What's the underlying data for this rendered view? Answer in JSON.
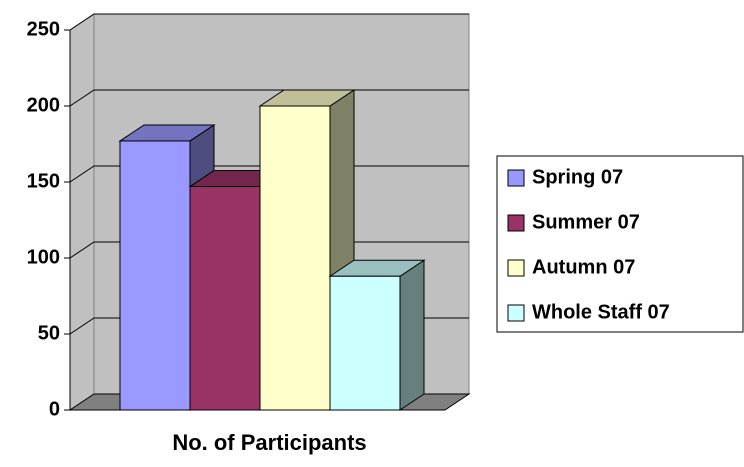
{
  "chart_data": {
    "type": "bar",
    "categories": [
      "No. of Participants"
    ],
    "series": [
      {
        "name": "Spring 07",
        "color": "#9999ff",
        "values": [
          177
        ]
      },
      {
        "name": "Summer 07",
        "color": "#993366",
        "values": [
          147
        ]
      },
      {
        "name": "Autumn 07",
        "color": "#ffffcc",
        "values": [
          200
        ]
      },
      {
        "name": "Whole Staff 07",
        "color": "#ccffff",
        "values": [
          88
        ]
      }
    ],
    "ylim": [
      0,
      250
    ],
    "yticks": [
      0,
      50,
      100,
      150,
      200,
      250
    ],
    "grid": true,
    "legend": "right"
  }
}
